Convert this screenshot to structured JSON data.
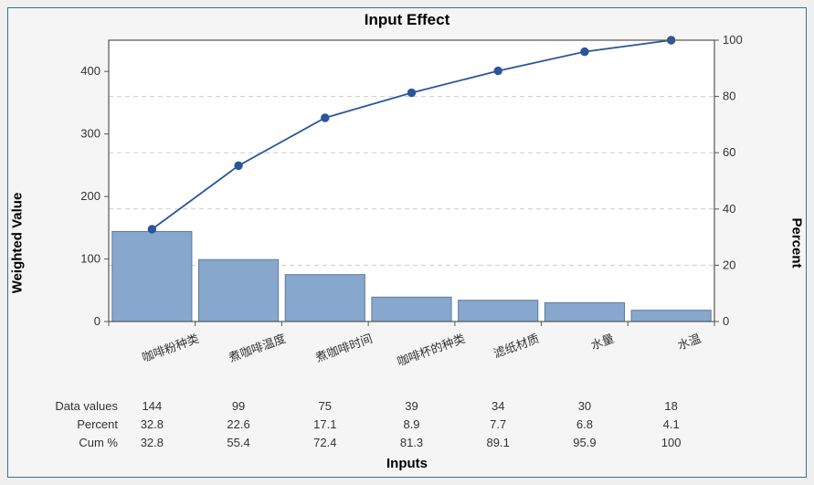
{
  "title": "Input Effect",
  "title_fontsize": 17,
  "yleft_label": "Weighted Value",
  "yright_label": "Percent",
  "x_label": "Inputs",
  "axis_label_fontsize": 15,
  "tick_fontsize": 13,
  "cat_fontsize": 13,
  "table_fontsize": 13,
  "categories": [
    "咖啡粉种类",
    "煮咖啡温度",
    "煮咖啡时间",
    "咖啡杯的种类",
    "滤纸材质",
    "水量",
    "水温"
  ],
  "data_values": [
    144,
    99,
    75,
    39,
    34,
    30,
    18
  ],
  "percent": [
    32.8,
    22.6,
    17.1,
    8.9,
    7.7,
    6.8,
    4.1
  ],
  "cum_percent": [
    32.8,
    55.4,
    72.4,
    81.3,
    89.1,
    95.9,
    100
  ],
  "row_headers": [
    "Data values",
    "Percent",
    "Cum %"
  ],
  "yleft": {
    "min": 0,
    "max": 450,
    "tick_step": 100
  },
  "yright": {
    "min": 0,
    "max": 100,
    "tick_step": 20
  },
  "colors": {
    "bar_fill": "#87a7cc",
    "bar_stroke": "#5a7aa0",
    "line": "#2a5599",
    "marker_fill": "#2a5599",
    "plot_bg": "#ffffff",
    "plot_border": "#555555",
    "grid": "#cccccc",
    "tick_text": "#333333",
    "outer_border": "#3a6ea5",
    "card_bg": "#f5f5f5"
  },
  "bar_width_ratio": 0.92,
  "line_width": 1.8,
  "marker_radius": 4.2,
  "grid_dash": "5,4"
}
